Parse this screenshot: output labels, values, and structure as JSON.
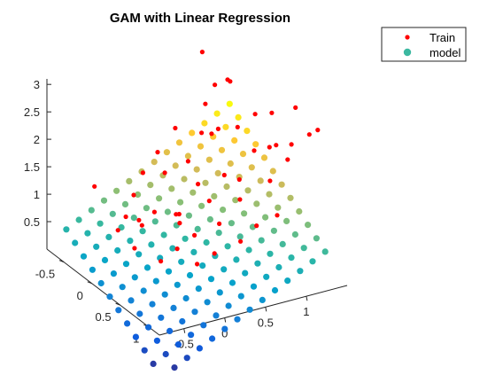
{
  "chart_data": {
    "type": "scatter",
    "title": "GAM with Linear Regression",
    "legend": {
      "placement": "top-right",
      "entries": [
        {
          "label": "Train",
          "color": "#ff0000",
          "marker": "dot"
        },
        {
          "label": "model",
          "color": "#3cb8a0",
          "marker": "circle"
        }
      ]
    },
    "axes": {
      "x": {
        "lim": [
          -0.8,
          1.5
        ],
        "ticks": [
          -0.5,
          0,
          0.5,
          1
        ],
        "tick_labels": [
          "-0.5",
          "0",
          "0.5",
          "1"
        ]
      },
      "y": {
        "lim": [
          -0.8,
          1.2
        ],
        "ticks": [
          -0.5,
          0,
          0.5,
          1
        ],
        "tick_labels": [
          "-0.5",
          "0",
          "0.5",
          "1"
        ]
      },
      "z": {
        "lim": [
          0,
          3.1
        ],
        "ticks": [
          0.5,
          1,
          1.5,
          2,
          2.5,
          3
        ],
        "tick_labels": [
          "0.5",
          "1",
          "1.5",
          "2",
          "2.5",
          "3"
        ]
      }
    },
    "grid": false,
    "colormap": [
      "#352a87",
      "#0f5cdd",
      "#1481d6",
      "#06a4ca",
      "#2eb7a4",
      "#87bf77",
      "#d1bb59",
      "#fec832",
      "#f9fb0e"
    ],
    "model": {
      "description_of_surface": "plane z = 0.2 + 0.75*x + 0.8*y on a regular grid",
      "x_grid": [
        -0.7,
        1.3,
        14
      ],
      "y_grid": [
        -0.7,
        1.0,
        12
      ],
      "coefficients": {
        "intercept": 0.2,
        "x": 0.75,
        "y": 0.8
      }
    },
    "series": [
      {
        "name": "Train",
        "points": [
          [
            1.0,
            1.05,
            3.0
          ],
          [
            1.35,
            -0.1,
            2.75
          ],
          [
            1.0,
            0.6,
            2.85
          ],
          [
            1.1,
            0.7,
            2.7
          ],
          [
            1.45,
            -0.35,
            2.5
          ],
          [
            1.45,
            -0.2,
            2.3
          ],
          [
            -0.7,
            0.5,
            1.65
          ],
          [
            -0.6,
            -0.2,
            1.45
          ],
          [
            -0.5,
            0.0,
            1.35
          ],
          [
            -0.55,
            0.3,
            0.95
          ],
          [
            -0.2,
            -0.6,
            0.9
          ],
          [
            0.0,
            0.0,
            1.1
          ],
          [
            0.2,
            0.3,
            0.95
          ],
          [
            0.3,
            0.5,
            0.75
          ],
          [
            0.5,
            0.2,
            1.15
          ],
          [
            0.6,
            -0.2,
            1.45
          ],
          [
            0.8,
            0.1,
            1.5
          ],
          [
            0.9,
            -0.3,
            1.75
          ],
          [
            1.05,
            0.2,
            1.85
          ],
          [
            1.1,
            0.0,
            2.05
          ],
          [
            1.15,
            -0.25,
            2.0
          ],
          [
            1.25,
            0.1,
            1.95
          ],
          [
            1.3,
            -0.1,
            2.1
          ],
          [
            0.95,
            0.35,
            2.2
          ],
          [
            0.7,
            0.45,
            2.1
          ],
          [
            0.75,
            0.7,
            1.9
          ],
          [
            0.35,
            0.9,
            1.55
          ],
          [
            0.1,
            0.8,
            1.35
          ],
          [
            -0.15,
            0.6,
            1.2
          ],
          [
            -0.35,
            0.45,
            1.0
          ],
          [
            0.4,
            -0.5,
            1.0
          ],
          [
            0.15,
            -0.4,
            0.8
          ],
          [
            -0.1,
            -0.1,
            0.75
          ],
          [
            0.55,
            0.65,
            1.5
          ],
          [
            0.85,
            -0.5,
            1.3
          ],
          [
            1.2,
            0.4,
            2.3
          ],
          [
            0.6,
            0.95,
            1.85
          ],
          [
            0.9,
            0.85,
            2.25
          ],
          [
            0.0,
            0.45,
            0.95
          ],
          [
            0.25,
            0.1,
            0.7
          ],
          [
            0.45,
            -0.05,
            0.95
          ],
          [
            0.7,
            -0.35,
            1.05
          ],
          [
            1.3,
            0.25,
            2.4
          ],
          [
            1.05,
            0.9,
            2.5
          ],
          [
            0.5,
            0.4,
            1.3
          ],
          [
            0.3,
            0.7,
            1.35
          ],
          [
            -0.3,
            -0.1,
            0.6
          ],
          [
            -0.45,
            0.15,
            0.7
          ],
          [
            0.65,
            0.15,
            1.6
          ],
          [
            0.85,
            0.55,
            2.05
          ]
        ]
      }
    ]
  }
}
